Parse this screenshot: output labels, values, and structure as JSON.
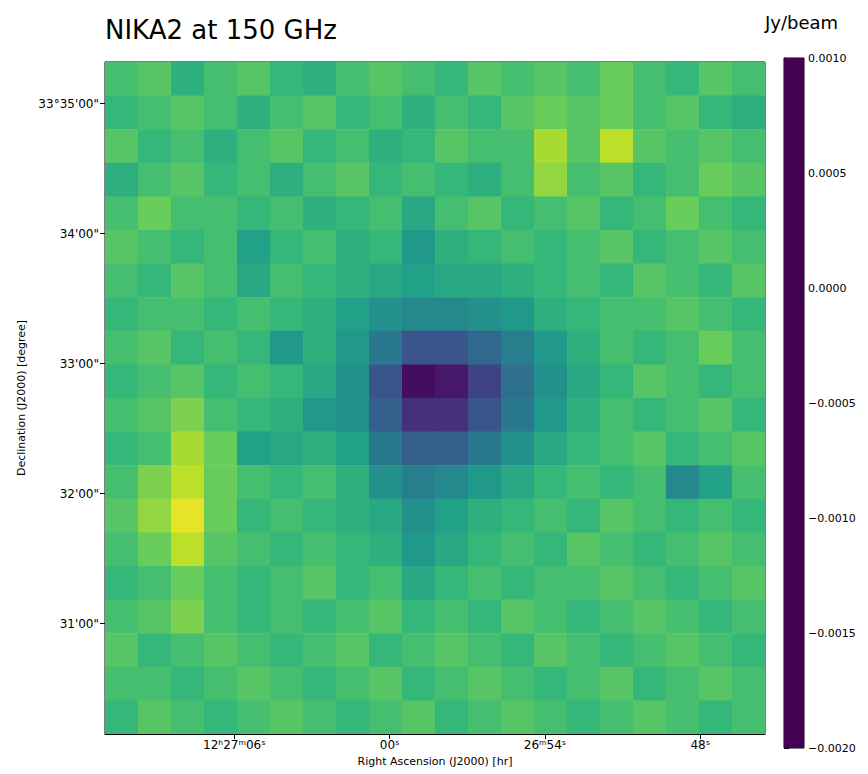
{
  "chart_data": {
    "type": "heatmap",
    "title": "NIKA2 at 150 GHz",
    "x_label": "Right Ascension (J2000) [hr]",
    "y_label": "Declination (J2000) [degree]",
    "xlim": [
      71.0,
      45.5
    ],
    "ylim": [
      30.15,
      35.32
    ],
    "xticks": [
      {
        "value": 66,
        "label": "12ʰ27ᵐ06ˢ"
      },
      {
        "value": 60,
        "label": "00ˢ"
      },
      {
        "value": 54,
        "label": "26ᵐ54ˢ"
      },
      {
        "value": 48,
        "label": "48ˢ"
      }
    ],
    "yticks": [
      {
        "value": 35,
        "label": "33°35'00\""
      },
      {
        "value": 34,
        "label": "34'00\""
      },
      {
        "value": 33,
        "label": "33'00\""
      },
      {
        "value": 32,
        "label": "32'00\""
      },
      {
        "value": 31,
        "label": "31'00\""
      }
    ],
    "x_edges": [
      71.0,
      69.725,
      68.45,
      67.175,
      65.9,
      64.625,
      63.35,
      62.075,
      60.8,
      59.525,
      58.25,
      56.975,
      55.7,
      54.425,
      53.15,
      51.875,
      50.6,
      49.325,
      48.05,
      46.775,
      45.5
    ],
    "y_edges": [
      35.32,
      35.0615,
      34.803,
      34.5445,
      34.286,
      34.0275,
      33.769,
      33.5105,
      33.252,
      32.9935,
      32.735,
      32.4765,
      32.218,
      31.9595,
      31.701,
      31.4425,
      31.184,
      30.9255,
      30.667,
      30.4085,
      30.15
    ],
    "cells": [
      [
        0.0001,
        0.0002,
        -0.0001,
        0.0001,
        0.0002,
        0.0,
        -0.0001,
        0.0001,
        0.0002,
        0.0001,
        0.0,
        0.0002,
        0.0001,
        0.0002,
        0.0001,
        0.0003,
        0.0001,
        0.0,
        0.0002,
        0.0001
      ],
      [
        0.0,
        0.0001,
        0.0002,
        0.0001,
        -0.0001,
        0.0001,
        0.0002,
        0.0,
        0.0001,
        -0.0001,
        0.0001,
        0.0,
        0.0002,
        0.0003,
        0.0002,
        0.0003,
        0.0001,
        0.0002,
        0.0,
        -0.0001
      ],
      [
        0.0002,
        0.0,
        0.0001,
        -0.0001,
        0.0001,
        0.0002,
        0.0,
        0.0001,
        -0.0001,
        0.0,
        0.0002,
        0.0001,
        0.0001,
        0.0006,
        0.0002,
        0.0007,
        0.0002,
        0.0001,
        0.0002,
        0.0001
      ],
      [
        -0.0001,
        0.0001,
        0.0002,
        0.0,
        0.0001,
        -0.0001,
        0.0001,
        0.0002,
        0.0,
        0.0001,
        0.0,
        -0.0001,
        0.0001,
        0.0005,
        0.0001,
        0.0002,
        0.0,
        0.0001,
        0.0003,
        0.0002
      ],
      [
        0.0001,
        0.0003,
        0.0001,
        0.0001,
        0.0,
        0.0001,
        -0.0001,
        0.0,
        0.0001,
        -0.0002,
        0.0001,
        0.0002,
        0.0,
        0.0001,
        0.0002,
        0.0,
        0.0001,
        0.0003,
        0.0001,
        0.0
      ],
      [
        0.0002,
        0.0001,
        0.0,
        0.0001,
        -0.0003,
        0.0,
        0.0001,
        -0.0001,
        0.0,
        -0.0004,
        -0.0001,
        0.0,
        0.0001,
        0.0,
        0.0001,
        0.0002,
        0.0,
        0.0001,
        0.0002,
        0.0001
      ],
      [
        0.0001,
        0.0,
        0.0002,
        0.0001,
        -0.0002,
        0.0001,
        0.0,
        -0.0001,
        -0.0002,
        -0.0003,
        -0.0002,
        -0.0002,
        -0.0001,
        0.0,
        0.0001,
        0.0,
        0.0002,
        0.0001,
        0.0,
        0.0002
      ],
      [
        0.0,
        0.0001,
        0.0001,
        0.0,
        0.0001,
        0.0,
        -0.0001,
        -0.0003,
        -0.0005,
        -0.0006,
        -0.0006,
        -0.0005,
        -0.0004,
        -0.0001,
        0.0,
        0.0001,
        0.0001,
        0.0002,
        0.0001,
        0.0
      ],
      [
        0.0001,
        0.0002,
        0.0,
        0.0001,
        0.0,
        -0.0004,
        -0.0001,
        -0.0004,
        -0.0008,
        -0.0012,
        -0.0012,
        -0.001,
        -0.0007,
        -0.0004,
        -0.0001,
        0.0001,
        0.0,
        0.0001,
        0.0003,
        0.0001
      ],
      [
        0.0,
        0.0001,
        0.0002,
        0.0,
        0.0001,
        0.0,
        -0.0002,
        -0.0005,
        -0.0012,
        -0.0019,
        -0.0018,
        -0.0014,
        -0.0009,
        -0.0005,
        -0.0002,
        0.0,
        0.0002,
        0.0001,
        0.0,
        0.0001
      ],
      [
        0.0001,
        0.0002,
        0.0004,
        0.0001,
        0.0,
        -0.0001,
        -0.0004,
        -0.0005,
        -0.0011,
        -0.0016,
        -0.0016,
        -0.0012,
        -0.0008,
        -0.0004,
        -0.0001,
        0.0001,
        0.0,
        0.0001,
        0.0002,
        0.0
      ],
      [
        0.0,
        0.0001,
        0.0006,
        0.0003,
        -0.0003,
        -0.0002,
        -0.0001,
        -0.0003,
        -0.0008,
        -0.0011,
        -0.0011,
        -0.0008,
        -0.0005,
        -0.0002,
        0.0,
        0.0001,
        0.0002,
        0.0,
        0.0001,
        0.0002
      ],
      [
        0.0001,
        0.0004,
        0.0007,
        0.0003,
        0.0001,
        0.0,
        0.0001,
        -0.0001,
        -0.0005,
        -0.0007,
        -0.0006,
        -0.0004,
        -0.0002,
        0.0,
        0.0001,
        0.0,
        0.0001,
        -0.0006,
        -0.0003,
        0.0001
      ],
      [
        0.0002,
        0.0005,
        0.0009,
        0.0003,
        0.0,
        0.0001,
        0.0,
        -0.0001,
        -0.0002,
        -0.0005,
        -0.0003,
        -0.0001,
        0.0,
        0.0001,
        0.0,
        0.0002,
        0.0001,
        0.0,
        0.0001,
        0.0
      ],
      [
        0.0001,
        0.0003,
        0.0007,
        0.0002,
        0.0001,
        0.0,
        0.0001,
        0.0,
        -0.0001,
        -0.0004,
        -0.0002,
        0.0,
        0.0001,
        0.0,
        0.0002,
        0.0001,
        0.0,
        0.0001,
        0.0002,
        0.0001
      ],
      [
        0.0,
        0.0001,
        0.0003,
        0.0001,
        0.0,
        0.0001,
        0.0002,
        0.0,
        0.0001,
        -0.0002,
        0.0,
        0.0001,
        0.0,
        0.0001,
        0.0001,
        0.0002,
        0.0001,
        0.0,
        0.0001,
        0.0002
      ],
      [
        0.0001,
        0.0002,
        0.0004,
        0.0001,
        0.0,
        0.0001,
        0.0,
        0.0001,
        0.0002,
        0.0,
        0.0001,
        0.0,
        0.0002,
        0.0001,
        0.0,
        0.0001,
        0.0002,
        0.0001,
        0.0,
        0.0001
      ],
      [
        0.0002,
        0.0,
        0.0001,
        0.0002,
        0.0001,
        0.0,
        0.0001,
        0.0002,
        0.0,
        0.0001,
        0.0002,
        0.0001,
        0.0,
        0.0002,
        0.0001,
        0.0,
        0.0001,
        0.0002,
        0.0001,
        0.0
      ],
      [
        0.0001,
        0.0001,
        0.0,
        0.0001,
        0.0002,
        0.0001,
        0.0,
        0.0001,
        0.0002,
        0.0,
        0.0001,
        0.0002,
        0.0001,
        0.0,
        0.0001,
        0.0002,
        0.0,
        0.0001,
        0.0002,
        0.0001
      ],
      [
        0.0,
        0.0002,
        0.0001,
        0.0,
        0.0001,
        0.0002,
        0.0001,
        0.0,
        0.0001,
        0.0002,
        0.0,
        0.0001,
        0.0002,
        0.0001,
        0.0,
        0.0001,
        0.0002,
        0.0001,
        0.0,
        0.0001
      ]
    ],
    "colorbar": {
      "title": "Jy/beam",
      "range": [
        -0.002,
        0.001
      ],
      "ticks": [
        {
          "value": 0.001,
          "label": "0.0010"
        },
        {
          "value": 0.0005,
          "label": "0.0005"
        },
        {
          "value": 0,
          "label": "0.0000"
        },
        {
          "value": -0.0005,
          "label": "−0.0005"
        },
        {
          "value": -0.001,
          "label": "−0.0010"
        },
        {
          "value": -0.0015,
          "label": "−0.0015"
        },
        {
          "value": -0.002,
          "label": "−0.0020"
        }
      ]
    }
  }
}
